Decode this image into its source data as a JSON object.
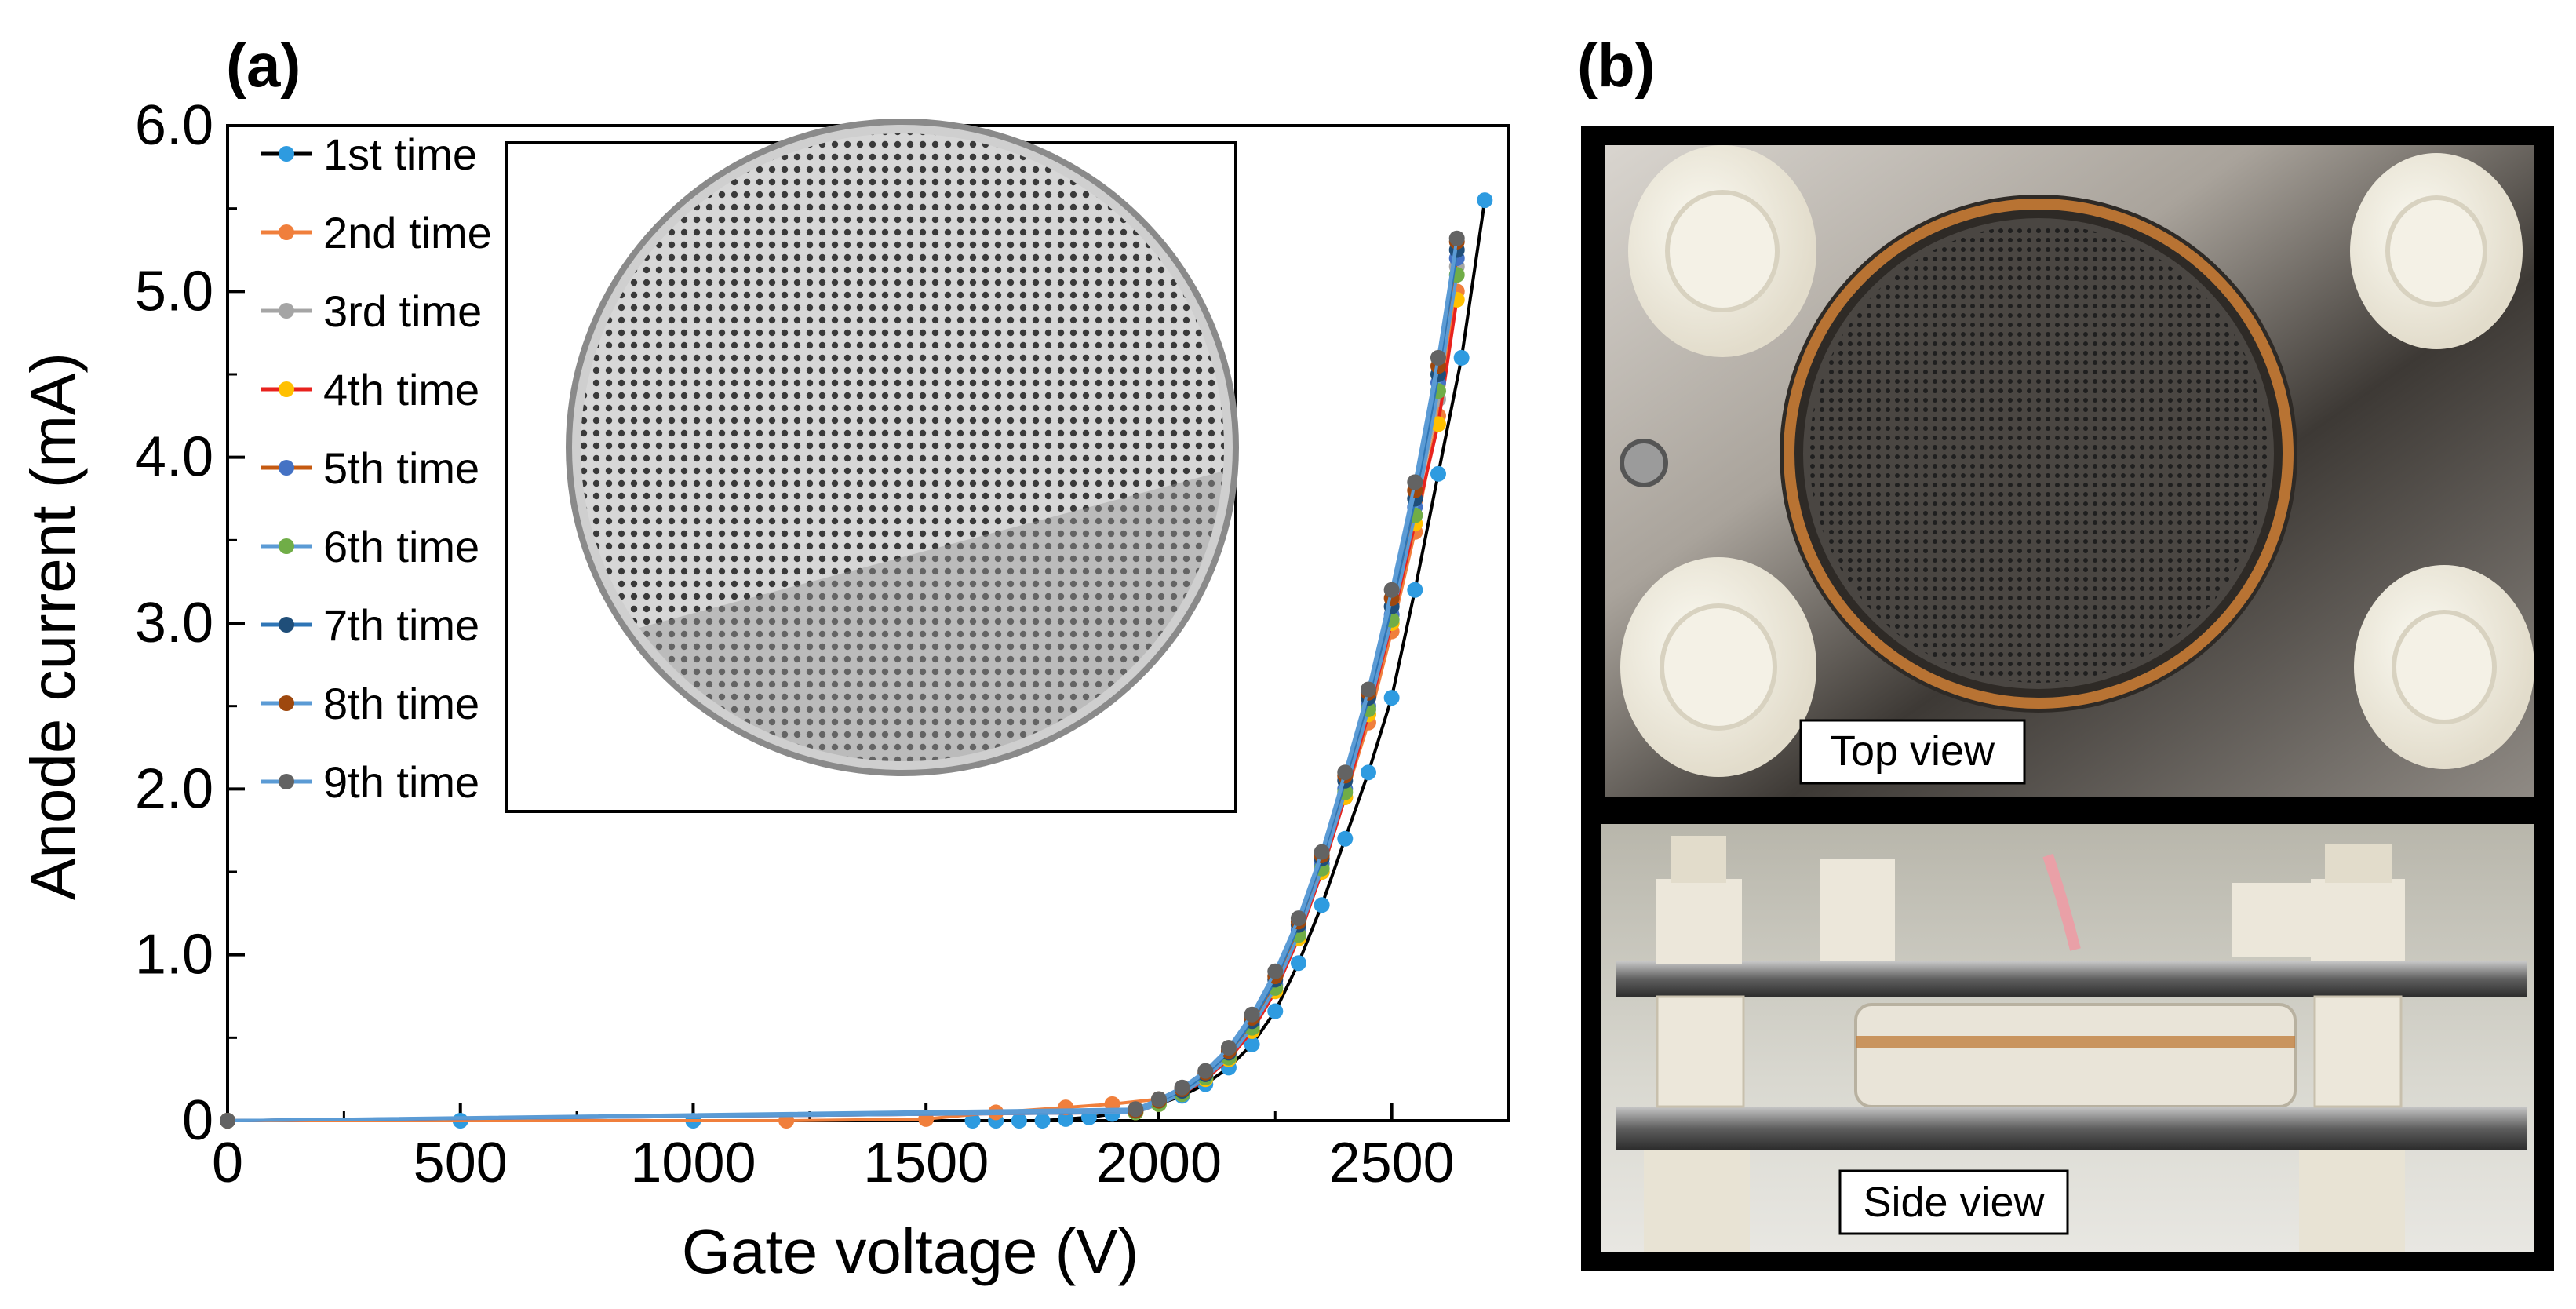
{
  "panels": {
    "a_label": "(a)",
    "b_label": "(b)"
  },
  "chart_data": {
    "type": "line",
    "title": "",
    "xlabel": "Gate voltage (V)",
    "ylabel": "Anode current (mA)",
    "xlim": [
      0,
      2750
    ],
    "ylim": [
      0,
      6.0
    ],
    "xticks": [
      0,
      500,
      1000,
      1500,
      2000,
      2500
    ],
    "xtick_labels": [
      "0",
      "500",
      "1000",
      "1500",
      "2000",
      "2500"
    ],
    "yticks": [
      0,
      1.0,
      2.0,
      3.0,
      4.0,
      5.0,
      6.0
    ],
    "ytick_labels": [
      "0",
      "1.0",
      "2.0",
      "3.0",
      "4.0",
      "5.0",
      "6.0"
    ],
    "legend_position": "top-left",
    "series": [
      {
        "name": "1st time",
        "line_color": "#000000",
        "marker_color": "#2E9BE0",
        "x": [
          0,
          500,
          1000,
          1600,
          1650,
          1700,
          1750,
          1800,
          1850,
          1900,
          1950,
          2000,
          2050,
          2100,
          2150,
          2200,
          2250,
          2300,
          2350,
          2400,
          2450,
          2500,
          2550,
          2600,
          2650,
          2700
        ],
        "y": [
          0,
          0,
          0,
          0,
          0,
          0,
          0,
          0.01,
          0.02,
          0.04,
          0.06,
          0.1,
          0.15,
          0.22,
          0.32,
          0.46,
          0.66,
          0.95,
          1.3,
          1.7,
          2.1,
          2.55,
          3.2,
          3.9,
          4.6,
          5.55
        ]
      },
      {
        "name": "2nd time",
        "line_color": "#F07F3C",
        "marker_color": "#F07F3C",
        "x": [
          0,
          1200,
          1500,
          1650,
          1800,
          1900,
          2000,
          2050,
          2100,
          2150,
          2200,
          2250,
          2300,
          2350,
          2400,
          2450,
          2500,
          2550,
          2600,
          2640
        ],
        "y": [
          0,
          0,
          0.01,
          0.05,
          0.08,
          0.1,
          0.13,
          0.18,
          0.26,
          0.38,
          0.55,
          0.78,
          1.1,
          1.5,
          1.95,
          2.4,
          2.95,
          3.55,
          4.25,
          5.0
        ]
      },
      {
        "name": "3rd time",
        "line_color": "#A5A5A5",
        "marker_color": "#A5A5A5",
        "x": [
          0,
          1950,
          2000,
          2050,
          2100,
          2150,
          2200,
          2250,
          2300,
          2350,
          2400,
          2450,
          2500,
          2550,
          2600,
          2640
        ],
        "y": [
          0,
          0.05,
          0.1,
          0.16,
          0.25,
          0.37,
          0.54,
          0.78,
          1.1,
          1.5,
          1.95,
          2.45,
          3.0,
          3.65,
          4.35,
          5.15
        ]
      },
      {
        "name": "4th time",
        "line_color": "#E8221D",
        "marker_color": "#FFC000",
        "x": [
          0,
          1950,
          2000,
          2050,
          2100,
          2150,
          2200,
          2250,
          2300,
          2350,
          2400,
          2450,
          2500,
          2550,
          2600,
          2640
        ],
        "y": [
          0,
          0.05,
          0.1,
          0.16,
          0.25,
          0.37,
          0.54,
          0.78,
          1.1,
          1.5,
          1.95,
          2.45,
          3.0,
          3.6,
          4.2,
          4.95
        ]
      },
      {
        "name": "5th time",
        "line_color": "#C55A11",
        "marker_color": "#4472C4",
        "x": [
          0,
          1950,
          2000,
          2050,
          2100,
          2150,
          2200,
          2250,
          2300,
          2350,
          2400,
          2450,
          2500,
          2550,
          2600,
          2640
        ],
        "y": [
          0,
          0.06,
          0.11,
          0.17,
          0.27,
          0.4,
          0.58,
          0.82,
          1.15,
          1.55,
          2.0,
          2.5,
          3.05,
          3.7,
          4.45,
          5.2
        ]
      },
      {
        "name": "6th time",
        "line_color": "#5B9BD5",
        "marker_color": "#70AD47",
        "x": [
          0,
          1950,
          2000,
          2050,
          2100,
          2150,
          2200,
          2250,
          2300,
          2350,
          2400,
          2450,
          2500,
          2550,
          2600,
          2640
        ],
        "y": [
          0,
          0.05,
          0.1,
          0.16,
          0.26,
          0.38,
          0.56,
          0.8,
          1.12,
          1.52,
          1.98,
          2.48,
          3.02,
          3.65,
          4.4,
          5.1
        ]
      },
      {
        "name": "7th time",
        "line_color": "#2E75B6",
        "marker_color": "#1F4E79",
        "x": [
          0,
          1950,
          2000,
          2050,
          2100,
          2150,
          2200,
          2250,
          2300,
          2350,
          2400,
          2450,
          2500,
          2550,
          2600,
          2640
        ],
        "y": [
          0,
          0.06,
          0.12,
          0.18,
          0.28,
          0.41,
          0.6,
          0.85,
          1.18,
          1.58,
          2.05,
          2.55,
          3.1,
          3.75,
          4.5,
          5.25
        ]
      },
      {
        "name": "8th time",
        "line_color": "#5B9BD5",
        "marker_color": "#9E480E",
        "x": [
          0,
          1950,
          2000,
          2050,
          2100,
          2150,
          2200,
          2250,
          2300,
          2350,
          2400,
          2450,
          2500,
          2550,
          2600,
          2640
        ],
        "y": [
          0,
          0.06,
          0.12,
          0.19,
          0.29,
          0.42,
          0.62,
          0.87,
          1.2,
          1.6,
          2.08,
          2.58,
          3.15,
          3.8,
          4.55,
          5.3
        ]
      },
      {
        "name": "9th time",
        "line_color": "#5B9BD5",
        "marker_color": "#636363",
        "x": [
          0,
          1950,
          2000,
          2050,
          2100,
          2150,
          2200,
          2250,
          2300,
          2350,
          2400,
          2450,
          2500,
          2550,
          2600,
          2640
        ],
        "y": [
          0,
          0.07,
          0.13,
          0.2,
          0.3,
          0.44,
          0.64,
          0.9,
          1.22,
          1.62,
          2.1,
          2.6,
          3.2,
          3.85,
          4.6,
          5.32
        ]
      }
    ]
  },
  "photos": {
    "inset": {
      "name": "gate-grid-photo"
    },
    "top": {
      "caption": "Top view"
    },
    "side": {
      "caption": "Side view"
    }
  }
}
